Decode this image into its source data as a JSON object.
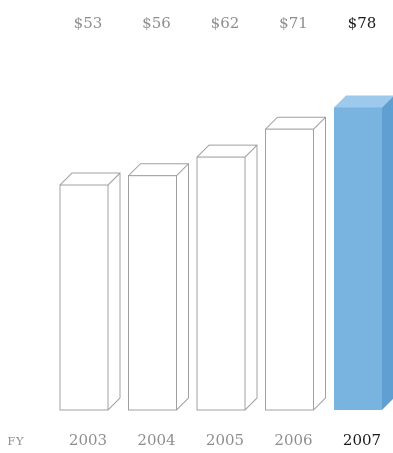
{
  "chart_data": {
    "type": "bar",
    "title": "",
    "xlabel": "FY",
    "ylabel": "",
    "x_prefix": "FY",
    "categories": [
      "2003",
      "2004",
      "2005",
      "2006",
      "2007"
    ],
    "values": [
      53,
      56,
      62,
      71,
      78
    ],
    "value_labels": [
      "$53",
      "$56",
      "$62",
      "$71",
      "$78"
    ],
    "highlight_index": 4,
    "grid": false,
    "legend": "none",
    "colors": {
      "bar_fill": "#ffffff",
      "bar_stroke": "#a0a0a0",
      "highlight_fill": "#79b3e0",
      "highlight_side": "#5f9fd2",
      "highlight_top": "#9cc9ec",
      "muted_text": "#8d8d8d",
      "highlight_text": "#1a1a1a"
    }
  }
}
